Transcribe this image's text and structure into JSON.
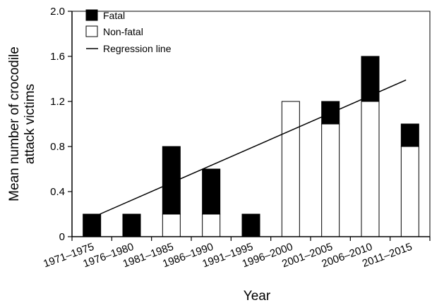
{
  "chart_data": {
    "type": "bar",
    "stacked": true,
    "title": "",
    "xlabel": "Year",
    "ylabel": [
      "Mean number of crocodile",
      "attack victims"
    ],
    "ylim": [
      0,
      2.0
    ],
    "yticks": [
      "0",
      "0.4",
      "0.8",
      "1.2",
      "1.6",
      "2.0"
    ],
    "categories": [
      "1971–1975",
      "1976–1980",
      "1981–1985",
      "1986–1990",
      "1991–1995",
      "1996–2000",
      "2001–2005",
      "2006–2010",
      "2011–2015"
    ],
    "series": [
      {
        "name": "Non-fatal",
        "color": "#ffffff",
        "values": [
          0,
          0,
          0.2,
          0.2,
          0,
          1.2,
          1.0,
          1.2,
          0.8
        ]
      },
      {
        "name": "Fatal",
        "color": "#000000",
        "values": [
          0.2,
          0.2,
          0.6,
          0.4,
          0.2,
          0,
          0.2,
          0.4,
          0.2
        ]
      }
    ],
    "regression": {
      "name": "Regression line",
      "start": [
        0.2,
        0.2
      ],
      "end": [
        7.9,
        1.39
      ]
    },
    "legend": {
      "position": "top-left",
      "items": [
        {
          "label": "Fatal",
          "swatch": "filled"
        },
        {
          "label": "Non-fatal",
          "swatch": "empty"
        },
        {
          "label": "Regression line",
          "swatch": "line"
        }
      ]
    },
    "grid": false
  }
}
